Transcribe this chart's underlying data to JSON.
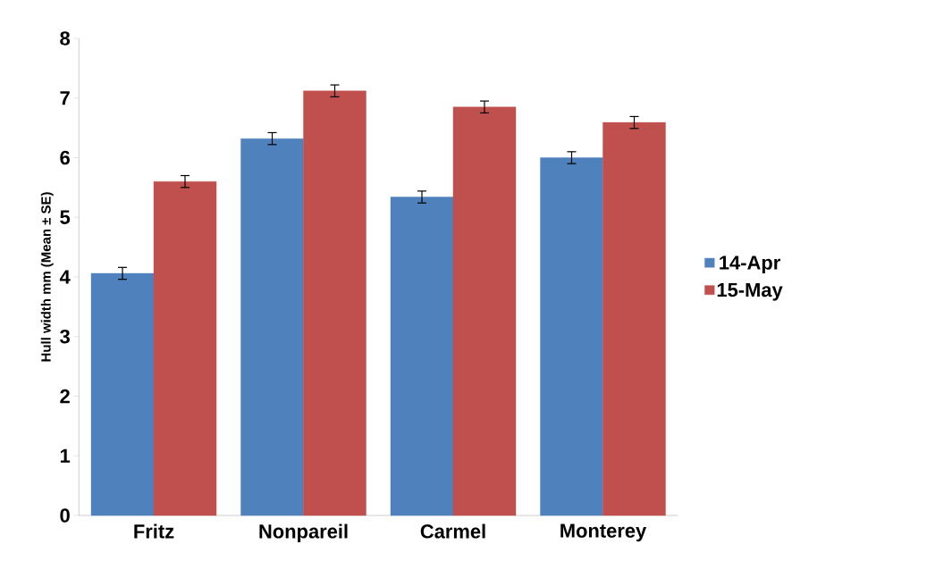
{
  "chart_data": {
    "type": "bar",
    "ylabel": "Hull width mm (Mean ± SE)",
    "categories": [
      "Fritz",
      "Nonpareil",
      "Carmel",
      "Monterey"
    ],
    "series": [
      {
        "name": "14-Apr",
        "color": "#4f81bd",
        "values": [
          4.06,
          6.32,
          5.34,
          6.0
        ],
        "errors": [
          0.1,
          0.1,
          0.1,
          0.1
        ]
      },
      {
        "name": "15-May",
        "color": "#c0504d",
        "values": [
          5.6,
          7.12,
          6.85,
          6.59
        ],
        "errors": [
          0.1,
          0.1,
          0.1,
          0.1
        ]
      }
    ],
    "ylim": [
      0,
      8
    ],
    "yticks": [
      0,
      1,
      2,
      3,
      4,
      5,
      6,
      7,
      8
    ],
    "grid": false,
    "legend": "right"
  }
}
